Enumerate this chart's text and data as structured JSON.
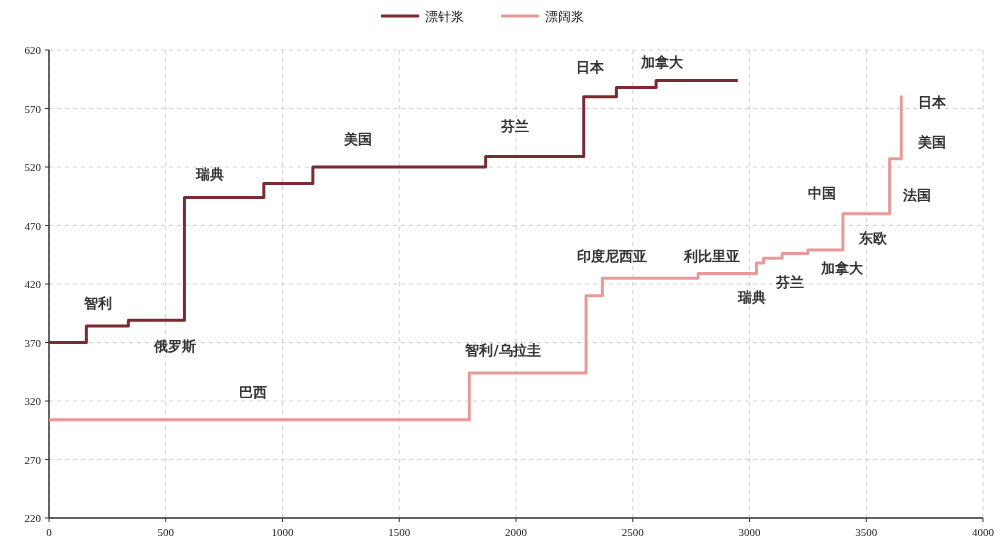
{
  "chart_data": {
    "type": "step",
    "xlim": [
      0,
      4000
    ],
    "ylim": [
      220,
      620
    ],
    "xticks": [
      0,
      500,
      1000,
      1500,
      2000,
      2500,
      3000,
      3500,
      4000
    ],
    "yticks": [
      220,
      270,
      320,
      370,
      420,
      470,
      520,
      570,
      620
    ],
    "grid": true,
    "legend": "top",
    "line_style": "solid",
    "marker": "none",
    "series": [
      {
        "name": "漂针浆",
        "color": "#7b2a33",
        "x": [
          0,
          160,
          340,
          580,
          920,
          1130,
          1870,
          2290,
          2430,
          2600,
          2950
        ],
        "values": [
          370,
          384,
          389,
          494,
          506,
          520,
          529,
          580,
          588,
          594,
          594
        ]
      },
      {
        "name": "漂阔浆",
        "color": "#e89a9a",
        "x": [
          0,
          1800,
          2300,
          2370,
          2780,
          3030,
          3060,
          3140,
          3250,
          3400,
          3600,
          3650,
          3655
        ],
        "values": [
          304,
          344,
          410,
          425,
          429,
          438,
          442,
          446,
          449,
          480,
          527,
          580,
          580
        ]
      }
    ],
    "annotations": [
      "智利",
      "俄罗斯",
      "瑞典",
      "美国",
      "芬兰",
      "日本",
      "加拿大",
      "巴西",
      "智利/乌拉圭",
      "印度尼西亚",
      "利比里亚",
      "瑞典",
      "芬兰",
      "加拿大",
      "东欧",
      "中国",
      "法国",
      "美国",
      "日本"
    ]
  }
}
